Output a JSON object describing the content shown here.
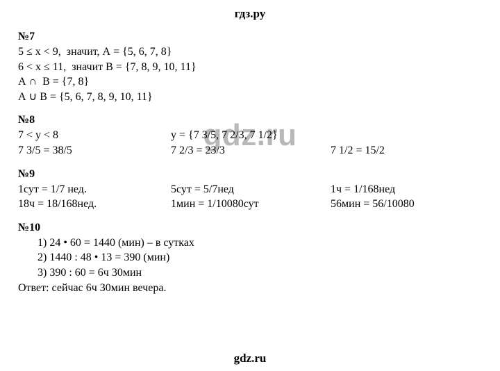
{
  "header": "гдз.ру",
  "watermark": "gdz.ru",
  "footer": "gdz.ru",
  "p7": {
    "title": "№7",
    "l1": "5 ≤ x < 9,  значит, А = {5, 6, 7, 8}",
    "l2": "6 < x ≤ 11,  значит В = {7, 8, 9, 10, 11}",
    "l3": "А ∩  В = {7, 8}",
    "l4": "А ∪ В = {5, 6, 7, 8, 9, 10, 11}"
  },
  "p8": {
    "title": "№8",
    "r1c1": "7 < y < 8",
    "r1c2": "y = {7 3/5, 7 2/3, 7 1/2}",
    "r2c1": "7 3/5 = 38/5",
    "r2c2": "7 2/3 = 23/3",
    "r2c3": "7 1/2 = 15/2"
  },
  "p9": {
    "title": "№9",
    "r1c1": "1сут = 1/7 нед.",
    "r1c2": "5сут = 5/7нед",
    "r1c3": "1ч = 1/168нед",
    "r2c1": "18ч = 18/168нед.",
    "r2c2": "1мин = 1/10080сут",
    "r2c3": "56мин = 56/10080"
  },
  "p10": {
    "title": "№10",
    "l1": "1) 24 • 60 = 1440 (мин) – в сутках",
    "l2": "2) 1440 : 48 • 13 = 390 (мин)",
    "l3": "3) 390 : 60 = 6ч 30мин",
    "answer": "Ответ: сейчас 6ч 30мин вечера."
  }
}
